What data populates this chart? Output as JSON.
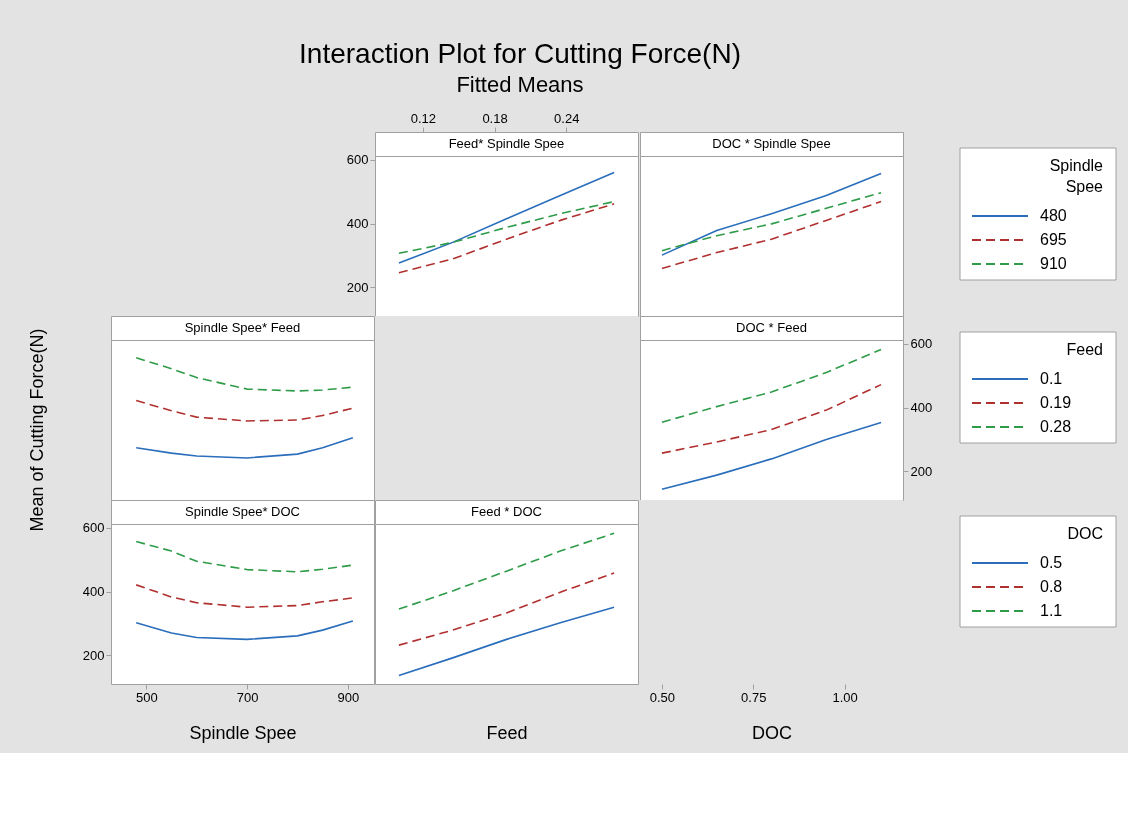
{
  "chart_data": [
    {
      "type": "other",
      "title": "Interaction Plot for Cutting Force(N)",
      "subtitle": "Fitted Means",
      "ylabel": "Mean of Cutting Force(N)"
    },
    {
      "type": "line",
      "title": "Feed* Spindle Spee",
      "x": [
        0.1,
        0.145,
        0.19,
        0.235,
        0.28
      ],
      "xlim": [
        0.08,
        0.3
      ],
      "xticks": [
        0.12,
        0.18,
        0.24
      ],
      "ylim": [
        110,
        612
      ],
      "yticks": [
        200,
        400,
        600
      ],
      "legend": "right",
      "legend_title": "Spindle Spee",
      "series": [
        {
          "name": "480",
          "color": "#2a6ebb",
          "line_style": "solid",
          "values": [
            276,
            341,
            415,
            488,
            560
          ]
        },
        {
          "name": "695",
          "color": "#b0302f",
          "line_style": "dashed",
          "values": [
            246,
            289,
            351,
            410,
            462
          ]
        },
        {
          "name": "910",
          "color": "#2e9b48",
          "line_style": "dashed",
          "values": [
            307,
            341,
            388,
            431,
            469
          ]
        }
      ]
    },
    {
      "type": "line",
      "title": "DOC * Spindle Spee",
      "x": [
        0.5,
        0.65,
        0.8,
        0.95,
        1.1
      ],
      "xlim": [
        0.44,
        1.16
      ],
      "ylim": [
        110,
        612
      ],
      "tick_labels": false,
      "series": [
        {
          "color": "#2a6ebb",
          "line_style": "solid",
          "values": [
            301,
            378,
            431,
            488,
            557
          ]
        },
        {
          "color": "#b0302f",
          "line_style": "dashed",
          "values": [
            259,
            309,
            351,
            410,
            469
          ]
        },
        {
          "color": "#2e9b48",
          "line_style": "dashed",
          "values": [
            315,
            362,
            399,
            448,
            497
          ]
        }
      ]
    },
    {
      "type": "line",
      "title": "Spindle Spee* Feed",
      "x": [
        480,
        550,
        600,
        700,
        800,
        850,
        910
      ],
      "xlim": [
        430,
        952
      ],
      "ylim": [
        110,
        612
      ],
      "tick_labels": false,
      "series": [
        {
          "color": "#2a6ebb",
          "line_style": "solid",
          "values": [
            274,
            257,
            248,
            242,
            254,
            274,
            305
          ]
        },
        {
          "color": "#b0302f",
          "line_style": "dashed",
          "values": [
            422,
            390,
            370,
            358,
            361,
            375,
            398
          ]
        },
        {
          "color": "#2e9b48",
          "line_style": "dashed",
          "values": [
            556,
            522,
            494,
            458,
            452,
            455,
            464
          ]
        }
      ]
    },
    {
      "type": "line",
      "title": "DOC * Feed",
      "x": [
        0.5,
        0.65,
        0.8,
        0.95,
        1.1
      ],
      "xlim": [
        0.44,
        1.16
      ],
      "xticks": [
        {
          "value": 0.5,
          "label": "0.50"
        },
        0.75,
        {
          "value": 1,
          "label": "1.00"
        }
      ],
      "xlabel": "DOC",
      "y2lim": [
        110,
        612
      ],
      "y2ticks": [
        200,
        400,
        600
      ],
      "legend": "right",
      "legend_title": "Feed",
      "series": [
        {
          "name": "0.1",
          "color": "#2a6ebb",
          "line_style": "solid",
          "axis": "y2",
          "values": [
            144,
            188,
            239,
            300,
            353
          ]
        },
        {
          "name": "0.19",
          "color": "#b0302f",
          "line_style": "dashed",
          "axis": "y2",
          "values": [
            257,
            292,
            331,
            392,
            472
          ]
        },
        {
          "name": "0.28",
          "color": "#2e9b48",
          "line_style": "dashed",
          "axis": "y2",
          "values": [
            354,
            403,
            449,
            510,
            582
          ]
        }
      ]
    },
    {
      "type": "line",
      "title": "Spindle Spee* DOC",
      "x": [
        480,
        550,
        600,
        700,
        800,
        850,
        910
      ],
      "xlim": [
        430,
        952
      ],
      "xticks": [
        500,
        700,
        900
      ],
      "xlabel": "Spindle Spee",
      "ylim": [
        110,
        612
      ],
      "yticks": [
        200,
        400,
        600
      ],
      "legend": "right",
      "legend_title": "DOC",
      "series": [
        {
          "name": "0.5",
          "color": "#2a6ebb",
          "line_style": "solid",
          "values": [
            302,
            270,
            256,
            250,
            261,
            279,
            308
          ]
        },
        {
          "name": "0.8",
          "color": "#b0302f",
          "line_style": "dashed",
          "values": [
            421,
            383,
            365,
            351,
            356,
            368,
            380
          ]
        },
        {
          "name": "1.1",
          "color": "#2e9b48",
          "line_style": "dashed",
          "values": [
            557,
            527,
            495,
            469,
            462,
            470,
            483
          ]
        }
      ]
    },
    {
      "type": "line",
      "title": "Feed * DOC",
      "x": [
        0.1,
        0.145,
        0.19,
        0.235,
        0.28
      ],
      "xlim": [
        0.08,
        0.3
      ],
      "xlabel": "Feed",
      "ylim": [
        110,
        612
      ],
      "tick_labels": false,
      "series": [
        {
          "color": "#2a6ebb",
          "line_style": "solid",
          "values": [
            137,
            192,
            250,
            302,
            351
          ]
        },
        {
          "color": "#b0302f",
          "line_style": "dashed",
          "values": [
            232,
            279,
            333,
            398,
            458
          ]
        },
        {
          "color": "#2e9b48",
          "line_style": "dashed",
          "values": [
            345,
            402,
            464,
            527,
            583
          ]
        }
      ]
    }
  ]
}
